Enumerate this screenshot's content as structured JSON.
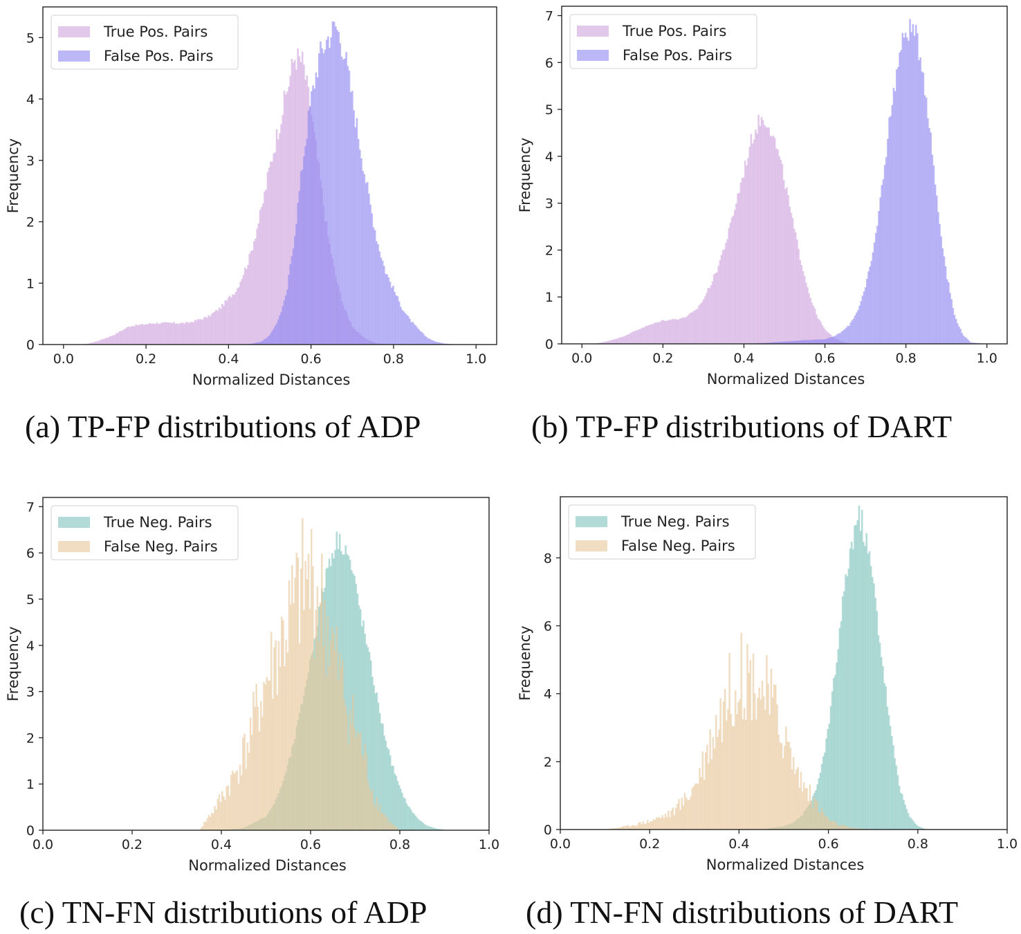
{
  "chart_data": [
    {
      "id": "a",
      "type": "histogram",
      "title": "",
      "caption": "(a)  TP-FP distributions of ADP",
      "xlabel": "Normalized Distances",
      "ylabel": "Frequency",
      "xlim": [
        -0.05,
        1.05
      ],
      "ylim": [
        0,
        5.5
      ],
      "xticks": [
        "0.0",
        "0.2",
        "0.4",
        "0.6",
        "0.8",
        "1.0"
      ],
      "yticks": [
        "0",
        "1",
        "2",
        "3",
        "4",
        "5"
      ],
      "legend_position": "top-left",
      "series": [
        {
          "name": "True Pos. Pairs",
          "color": "#cfa3de",
          "noise": 0.05,
          "x": [
            0.0,
            0.05,
            0.08,
            0.12,
            0.16,
            0.22,
            0.3,
            0.35,
            0.38,
            0.42,
            0.45,
            0.48,
            0.5,
            0.52,
            0.54,
            0.56,
            0.58,
            0.6,
            0.62,
            0.64,
            0.66,
            0.68,
            0.7,
            0.72,
            0.74,
            0.76,
            0.8,
            0.85
          ],
          "y": [
            0,
            0,
            0.05,
            0.15,
            0.3,
            0.35,
            0.35,
            0.45,
            0.6,
            0.9,
            1.4,
            2.2,
            2.9,
            3.5,
            4.1,
            4.7,
            4.6,
            3.8,
            2.8,
            1.8,
            1.1,
            0.6,
            0.3,
            0.15,
            0.07,
            0.02,
            0,
            0
          ]
        },
        {
          "name": "False Pos. Pairs",
          "color": "#8f87f2",
          "noise": 0.05,
          "x": [
            0.4,
            0.44,
            0.46,
            0.48,
            0.5,
            0.52,
            0.54,
            0.56,
            0.58,
            0.6,
            0.62,
            0.64,
            0.66,
            0.68,
            0.7,
            0.72,
            0.74,
            0.76,
            0.78,
            0.8,
            0.82,
            0.84,
            0.86,
            0.88,
            0.9,
            0.92,
            0.95,
            1.0
          ],
          "y": [
            0,
            0,
            0.02,
            0.05,
            0.15,
            0.4,
            0.8,
            1.8,
            3.0,
            4.0,
            4.7,
            5.0,
            5.2,
            4.8,
            4.0,
            3.2,
            2.4,
            1.7,
            1.2,
            0.9,
            0.6,
            0.4,
            0.25,
            0.12,
            0.05,
            0.02,
            0,
            0
          ]
        }
      ]
    },
    {
      "id": "b",
      "type": "histogram",
      "title": "",
      "caption": "(b)  TP-FP distributions of DART",
      "xlabel": "Normalized Distances",
      "ylabel": "Frequency",
      "xlim": [
        -0.05,
        1.05
      ],
      "ylim": [
        0,
        7.2
      ],
      "xticks": [
        "0.0",
        "0.2",
        "0.4",
        "0.6",
        "0.8",
        "1.0"
      ],
      "yticks": [
        "0",
        "1",
        "2",
        "3",
        "4",
        "5",
        "6",
        "7"
      ],
      "legend_position": "top-left",
      "series": [
        {
          "name": "True Pos. Pairs",
          "color": "#cfa3de",
          "noise": 0.04,
          "x": [
            0.0,
            0.03,
            0.06,
            0.1,
            0.15,
            0.2,
            0.25,
            0.28,
            0.3,
            0.33,
            0.36,
            0.38,
            0.4,
            0.42,
            0.44,
            0.46,
            0.48,
            0.5,
            0.52,
            0.54,
            0.56,
            0.58,
            0.6,
            0.62,
            0.64,
            0.66,
            0.7
          ],
          "y": [
            0,
            0,
            0.05,
            0.15,
            0.35,
            0.5,
            0.55,
            0.7,
            0.95,
            1.5,
            2.3,
            3.0,
            3.7,
            4.4,
            4.8,
            4.75,
            4.2,
            3.5,
            2.6,
            1.8,
            1.1,
            0.6,
            0.3,
            0.15,
            0.05,
            0.01,
            0
          ]
        },
        {
          "name": "False Pos. Pairs",
          "color": "#8f87f2",
          "noise": 0.04,
          "x": [
            0.4,
            0.45,
            0.5,
            0.55,
            0.6,
            0.62,
            0.64,
            0.66,
            0.68,
            0.7,
            0.72,
            0.74,
            0.76,
            0.78,
            0.8,
            0.82,
            0.84,
            0.86,
            0.88,
            0.9,
            0.92,
            0.94,
            0.96,
            1.0
          ],
          "y": [
            0,
            0.02,
            0.05,
            0.08,
            0.1,
            0.15,
            0.25,
            0.4,
            0.7,
            1.2,
            2.0,
            3.3,
            4.8,
            6.0,
            6.7,
            6.7,
            6.0,
            4.5,
            2.8,
            1.5,
            0.6,
            0.2,
            0.03,
            0
          ]
        }
      ]
    },
    {
      "id": "c",
      "type": "histogram",
      "title": "",
      "caption": "(c)  TN-FN distributions of ADP",
      "xlabel": "Normalized Distances",
      "ylabel": "Frequency",
      "xlim": [
        0.0,
        1.0
      ],
      "ylim": [
        0,
        7.2
      ],
      "xticks": [
        "0.0",
        "0.2",
        "0.4",
        "0.6",
        "0.8",
        "1.0"
      ],
      "yticks": [
        "0",
        "1",
        "2",
        "3",
        "4",
        "5",
        "6",
        "7"
      ],
      "legend_position": "top-left",
      "series": [
        {
          "name": "True Neg. Pairs",
          "color": "#7fc3bd",
          "noise": 0.04,
          "x": [
            0.4,
            0.45,
            0.5,
            0.52,
            0.54,
            0.56,
            0.58,
            0.6,
            0.62,
            0.64,
            0.66,
            0.68,
            0.7,
            0.72,
            0.74,
            0.76,
            0.78,
            0.8,
            0.82,
            0.84,
            0.86,
            0.88,
            0.9,
            0.92
          ],
          "y": [
            0,
            0.05,
            0.3,
            0.6,
            1.1,
            1.8,
            2.7,
            3.7,
            4.8,
            5.8,
            6.3,
            6.1,
            5.3,
            4.3,
            3.3,
            2.3,
            1.5,
            0.9,
            0.5,
            0.25,
            0.1,
            0.04,
            0.01,
            0
          ]
        },
        {
          "name": "False Neg. Pairs",
          "color": "#e8c79a",
          "noise": 0.3,
          "x": [
            0.35,
            0.38,
            0.4,
            0.43,
            0.46,
            0.48,
            0.5,
            0.52,
            0.54,
            0.56,
            0.58,
            0.6,
            0.62,
            0.64,
            0.66,
            0.68,
            0.7,
            0.72,
            0.74,
            0.76,
            0.78,
            0.8
          ],
          "y": [
            0,
            0.4,
            0.7,
            1.2,
            1.9,
            2.6,
            3.2,
            3.7,
            4.2,
            4.7,
            5.2,
            5.4,
            5.0,
            4.3,
            3.5,
            2.8,
            2.2,
            1.6,
            0.8,
            0.4,
            0.15,
            0
          ]
        }
      ]
    },
    {
      "id": "d",
      "type": "histogram",
      "title": "",
      "caption": "(d)  TN-FN distributions of DART",
      "xlabel": "Normalized Distances",
      "ylabel": "Frequency",
      "xlim": [
        0.0,
        1.0
      ],
      "ylim": [
        0,
        9.8
      ],
      "xticks": [
        "0.0",
        "0.2",
        "0.4",
        "0.6",
        "0.8",
        "1.0"
      ],
      "yticks": [
        "0",
        "2",
        "4",
        "6",
        "8"
      ],
      "legend_position": "top-left",
      "series": [
        {
          "name": "True Neg. Pairs",
          "color": "#7fc3bd",
          "noise": 0.05,
          "x": [
            0.45,
            0.5,
            0.52,
            0.54,
            0.56,
            0.58,
            0.6,
            0.62,
            0.64,
            0.66,
            0.67,
            0.68,
            0.7,
            0.72,
            0.74,
            0.76,
            0.78,
            0.8,
            0.82
          ],
          "y": [
            0,
            0.1,
            0.2,
            0.4,
            0.8,
            1.5,
            3.0,
            5.2,
            7.5,
            9.0,
            9.2,
            8.8,
            7.3,
            5.0,
            2.8,
            1.2,
            0.4,
            0.1,
            0
          ]
        },
        {
          "name": "False Neg. Pairs",
          "color": "#e8c79a",
          "noise": 0.3,
          "x": [
            0.1,
            0.15,
            0.2,
            0.25,
            0.28,
            0.3,
            0.32,
            0.34,
            0.36,
            0.38,
            0.4,
            0.42,
            0.44,
            0.46,
            0.48,
            0.5,
            0.52,
            0.54,
            0.56,
            0.58,
            0.6,
            0.62,
            0.65,
            0.7
          ],
          "y": [
            0,
            0.1,
            0.25,
            0.5,
            0.9,
            1.3,
            2.0,
            2.8,
            3.5,
            4.1,
            4.5,
            4.6,
            4.4,
            4.0,
            3.5,
            2.8,
            2.0,
            1.4,
            1.0,
            0.6,
            0.3,
            0.15,
            0.05,
            0
          ]
        }
      ]
    }
  ]
}
